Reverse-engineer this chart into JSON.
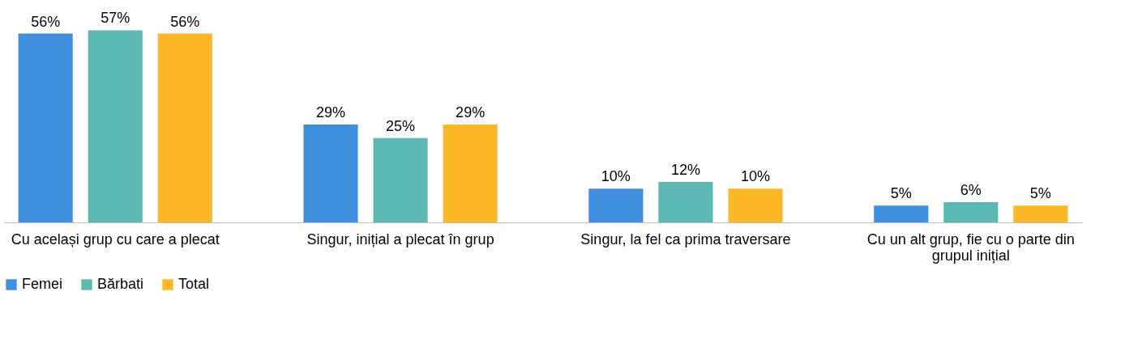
{
  "chart_data": {
    "type": "bar",
    "categories": [
      "Cu același grup cu care a plecat",
      "Singur, inițial a plecat în grup",
      "Singur, la fel ca prima traversare",
      "Cu un alt grup, fie cu o parte din grupul inițial"
    ],
    "series": [
      {
        "name": "Femei",
        "color": "#4190e0",
        "values": [
          56,
          29,
          10,
          5
        ],
        "value_labels": [
          "56%",
          "29%",
          "10%",
          "5%"
        ]
      },
      {
        "name": "Bărbati",
        "color": "#5cb8b2",
        "values": [
          57,
          25,
          12,
          6
        ],
        "value_labels": [
          "57%",
          "25%",
          "12%",
          "6%"
        ]
      },
      {
        "name": "Total",
        "color": "#fdb827",
        "values": [
          56,
          29,
          10,
          5
        ],
        "value_labels": [
          "56%",
          "29%",
          "10%",
          "5%"
        ]
      }
    ],
    "legend": "bottom",
    "grid": false,
    "tick_labels": "x"
  }
}
